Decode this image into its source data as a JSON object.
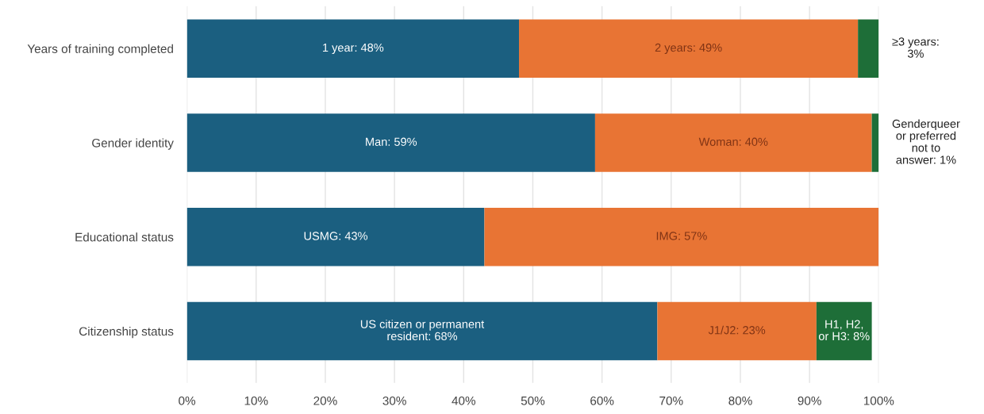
{
  "chart_data": {
    "type": "bar",
    "orientation": "horizontal",
    "stacked": true,
    "categories": [
      "Years of training completed",
      "Gender identity",
      "Educational status",
      "Citizenship status"
    ],
    "series": [
      {
        "color": "#1b5f80",
        "values": [
          48,
          59,
          43,
          68
        ],
        "value_labels": [
          "1 year: 48%",
          "Man: 59%",
          "USMG: 43%",
          "US citizen or permanent\nresident: 68%"
        ]
      },
      {
        "color": "#e87434",
        "values": [
          49,
          40,
          57,
          23
        ],
        "value_labels": [
          "2 years: 49%",
          "Woman: 40%",
          "IMG: 57%",
          "J1/J2: 23%"
        ]
      },
      {
        "color": "#1e6e38",
        "values": [
          3,
          1,
          null,
          8
        ],
        "value_labels": [
          "≥3 years:\n3%",
          "Genderqueer\nor preferred\nnot to\nanswer: 1%",
          null,
          "H1, H2,\nor H3: 8%"
        ]
      }
    ],
    "xlim": [
      0,
      100
    ],
    "xticks": [
      {
        "value": 0,
        "label": "0%"
      },
      {
        "value": 10,
        "label": "10%"
      },
      {
        "value": 20,
        "label": "20%"
      },
      {
        "value": 30,
        "label": "30%"
      },
      {
        "value": 40,
        "label": "40%"
      },
      {
        "value": 50,
        "label": "50%"
      },
      {
        "value": 60,
        "label": "60%"
      },
      {
        "value": 70,
        "label": "70%"
      },
      {
        "value": 80,
        "label": "80%"
      },
      {
        "value": 90,
        "label": "90%"
      },
      {
        "value": 100,
        "label": "100%"
      }
    ],
    "grid": "x"
  }
}
